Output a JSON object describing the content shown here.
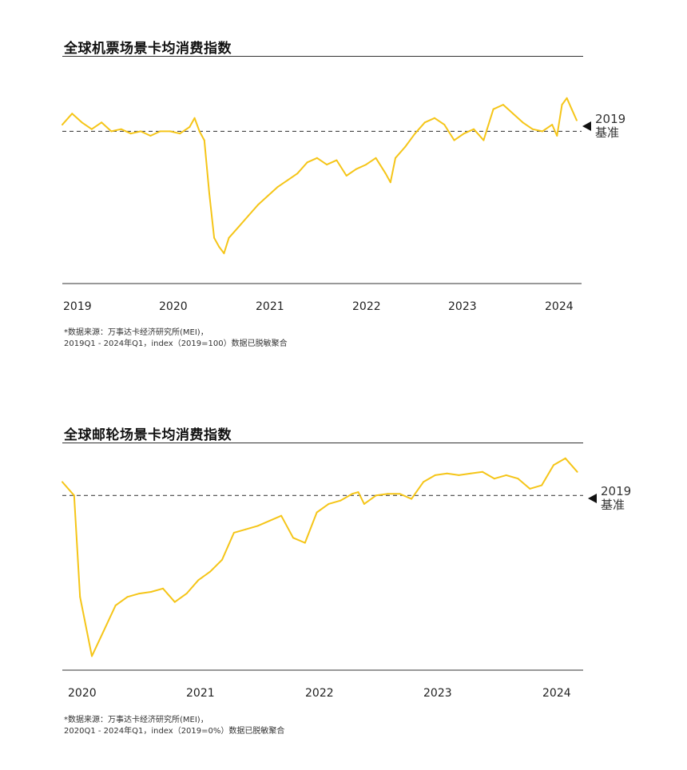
{
  "chart_data": [
    {
      "type": "line",
      "title": "全球机票场景卡均消费指数",
      "color": "#F5C518",
      "baseline_value": 100,
      "baseline_label_year": "2019",
      "baseline_label_text": "基准",
      "xlim": [
        2019.0,
        2024.3
      ],
      "ylim": [
        35,
        125
      ],
      "x_ticks": [
        "2019",
        "2020",
        "2021",
        "2022",
        "2023",
        "2024"
      ],
      "x": [
        2019.0,
        2019.1,
        2019.2,
        2019.3,
        2019.4,
        2019.5,
        2019.6,
        2019.7,
        2019.8,
        2019.9,
        2020.0,
        2020.1,
        2020.2,
        2020.3,
        2020.35,
        2020.4,
        2020.45,
        2020.5,
        2020.55,
        2020.6,
        2020.65,
        2020.7,
        2020.8,
        2020.9,
        2021.0,
        2021.1,
        2021.2,
        2021.3,
        2021.4,
        2021.5,
        2021.6,
        2021.7,
        2021.8,
        2021.9,
        2022.0,
        2022.1,
        2022.2,
        2022.3,
        2022.35,
        2022.4,
        2022.5,
        2022.6,
        2022.7,
        2022.8,
        2022.9,
        2023.0,
        2023.1,
        2023.2,
        2023.3,
        2023.35,
        2023.4,
        2023.5,
        2023.6,
        2023.7,
        2023.8,
        2023.9,
        2024.0,
        2024.05,
        2024.1,
        2024.15,
        2024.2,
        2024.25
      ],
      "values": [
        103,
        108,
        104,
        101,
        104,
        100,
        101,
        99,
        100,
        98,
        100,
        100,
        99,
        102,
        106,
        100,
        96,
        72,
        52,
        48,
        45,
        52,
        57,
        62,
        67,
        71,
        75,
        78,
        81,
        86,
        88,
        85,
        87,
        80,
        83,
        85,
        88,
        81,
        77,
        88,
        93,
        99,
        104,
        106,
        103,
        96,
        99,
        101,
        96,
        103,
        110,
        112,
        108,
        104,
        101,
        100,
        103,
        98,
        112,
        115,
        110,
        105
      ]
    },
    {
      "type": "line",
      "title": "全球邮轮场景卡均消费指数",
      "color": "#F5C518",
      "baseline_value": 0,
      "baseline_label_year": "2019",
      "baseline_label_text": "基准",
      "xlim": [
        2019.85,
        2024.25
      ],
      "ylim": [
        -100,
        20
      ],
      "x_ticks": [
        "2020",
        "2021",
        "2022",
        "2023",
        "2024"
      ],
      "x": [
        2019.85,
        2019.95,
        2020.0,
        2020.1,
        2020.2,
        2020.3,
        2020.4,
        2020.5,
        2020.6,
        2020.7,
        2020.8,
        2020.9,
        2021.0,
        2021.1,
        2021.2,
        2021.3,
        2021.4,
        2021.5,
        2021.6,
        2021.7,
        2021.8,
        2021.9,
        2022.0,
        2022.1,
        2022.2,
        2022.3,
        2022.35,
        2022.4,
        2022.5,
        2022.6,
        2022.7,
        2022.8,
        2022.9,
        2023.0,
        2023.1,
        2023.2,
        2023.3,
        2023.4,
        2023.5,
        2023.6,
        2023.7,
        2023.8,
        2023.9,
        2024.0,
        2024.1,
        2024.2
      ],
      "values": [
        8,
        0,
        -60,
        -95,
        -80,
        -65,
        -60,
        -58,
        -57,
        -55,
        -63,
        -58,
        -50,
        -45,
        -38,
        -22,
        -20,
        -18,
        -15,
        -12,
        -25,
        -28,
        -10,
        -5,
        -3,
        1,
        2,
        -5,
        0,
        1,
        1,
        -2,
        8,
        12,
        13,
        12,
        13,
        14,
        10,
        12,
        10,
        4,
        6,
        18,
        22,
        14
      ]
    }
  ],
  "sources": [
    {
      "line1": "*数据来源：万事达卡经济研究所(MEI)，",
      "line2": "2019Q1 - 2024年Q1，index（2019=100）数据已脱敏聚合"
    },
    {
      "line1": "*数据来源：万事达卡经济研究所(MEI)，",
      "line2": "2020Q1 - 2024年Q1，index（2019=0%）数据已脱敏聚合"
    }
  ]
}
